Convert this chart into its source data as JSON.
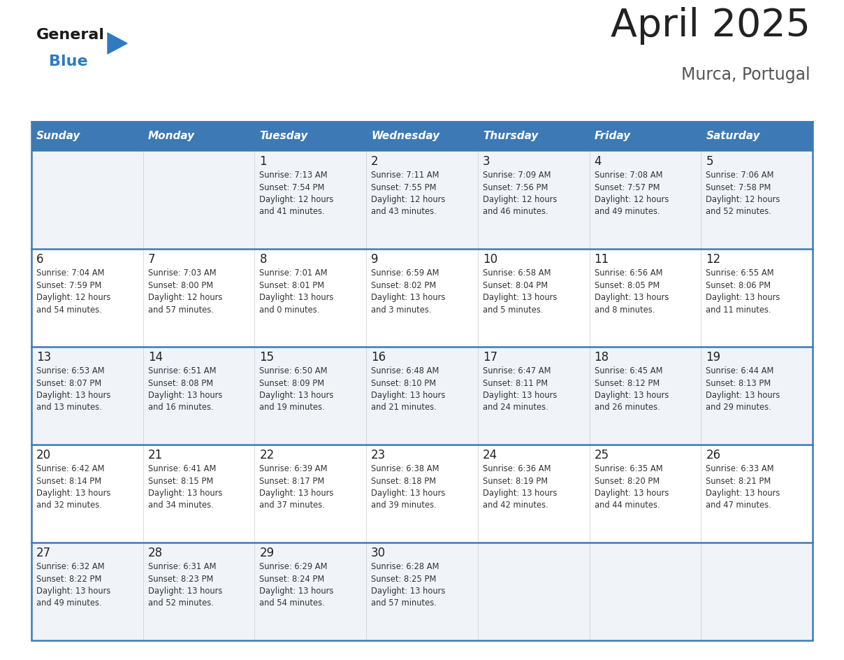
{
  "title": "April 2025",
  "subtitle": "Murca, Portugal",
  "days_of_week": [
    "Sunday",
    "Monday",
    "Tuesday",
    "Wednesday",
    "Thursday",
    "Friday",
    "Saturday"
  ],
  "header_bg": "#3d7ab5",
  "header_text": "#ffffff",
  "cell_border": "#3d7ab5",
  "row_border": "#4a90c4",
  "day_num_color": "#222222",
  "info_color": "#333333",
  "title_color": "#222222",
  "subtitle_color": "#555555",
  "logo_general_color": "#1a1a1a",
  "logo_blue_color": "#2e7bbf",
  "cell_bg_light": "#f0f4f8",
  "cell_bg_white": "#ffffff",
  "weeks": [
    [
      {
        "day": null,
        "info": null
      },
      {
        "day": null,
        "info": null
      },
      {
        "day": 1,
        "info": "Sunrise: 7:13 AM\nSunset: 7:54 PM\nDaylight: 12 hours\nand 41 minutes."
      },
      {
        "day": 2,
        "info": "Sunrise: 7:11 AM\nSunset: 7:55 PM\nDaylight: 12 hours\nand 43 minutes."
      },
      {
        "day": 3,
        "info": "Sunrise: 7:09 AM\nSunset: 7:56 PM\nDaylight: 12 hours\nand 46 minutes."
      },
      {
        "day": 4,
        "info": "Sunrise: 7:08 AM\nSunset: 7:57 PM\nDaylight: 12 hours\nand 49 minutes."
      },
      {
        "day": 5,
        "info": "Sunrise: 7:06 AM\nSunset: 7:58 PM\nDaylight: 12 hours\nand 52 minutes."
      }
    ],
    [
      {
        "day": 6,
        "info": "Sunrise: 7:04 AM\nSunset: 7:59 PM\nDaylight: 12 hours\nand 54 minutes."
      },
      {
        "day": 7,
        "info": "Sunrise: 7:03 AM\nSunset: 8:00 PM\nDaylight: 12 hours\nand 57 minutes."
      },
      {
        "day": 8,
        "info": "Sunrise: 7:01 AM\nSunset: 8:01 PM\nDaylight: 13 hours\nand 0 minutes."
      },
      {
        "day": 9,
        "info": "Sunrise: 6:59 AM\nSunset: 8:02 PM\nDaylight: 13 hours\nand 3 minutes."
      },
      {
        "day": 10,
        "info": "Sunrise: 6:58 AM\nSunset: 8:04 PM\nDaylight: 13 hours\nand 5 minutes."
      },
      {
        "day": 11,
        "info": "Sunrise: 6:56 AM\nSunset: 8:05 PM\nDaylight: 13 hours\nand 8 minutes."
      },
      {
        "day": 12,
        "info": "Sunrise: 6:55 AM\nSunset: 8:06 PM\nDaylight: 13 hours\nand 11 minutes."
      }
    ],
    [
      {
        "day": 13,
        "info": "Sunrise: 6:53 AM\nSunset: 8:07 PM\nDaylight: 13 hours\nand 13 minutes."
      },
      {
        "day": 14,
        "info": "Sunrise: 6:51 AM\nSunset: 8:08 PM\nDaylight: 13 hours\nand 16 minutes."
      },
      {
        "day": 15,
        "info": "Sunrise: 6:50 AM\nSunset: 8:09 PM\nDaylight: 13 hours\nand 19 minutes."
      },
      {
        "day": 16,
        "info": "Sunrise: 6:48 AM\nSunset: 8:10 PM\nDaylight: 13 hours\nand 21 minutes."
      },
      {
        "day": 17,
        "info": "Sunrise: 6:47 AM\nSunset: 8:11 PM\nDaylight: 13 hours\nand 24 minutes."
      },
      {
        "day": 18,
        "info": "Sunrise: 6:45 AM\nSunset: 8:12 PM\nDaylight: 13 hours\nand 26 minutes."
      },
      {
        "day": 19,
        "info": "Sunrise: 6:44 AM\nSunset: 8:13 PM\nDaylight: 13 hours\nand 29 minutes."
      }
    ],
    [
      {
        "day": 20,
        "info": "Sunrise: 6:42 AM\nSunset: 8:14 PM\nDaylight: 13 hours\nand 32 minutes."
      },
      {
        "day": 21,
        "info": "Sunrise: 6:41 AM\nSunset: 8:15 PM\nDaylight: 13 hours\nand 34 minutes."
      },
      {
        "day": 22,
        "info": "Sunrise: 6:39 AM\nSunset: 8:17 PM\nDaylight: 13 hours\nand 37 minutes."
      },
      {
        "day": 23,
        "info": "Sunrise: 6:38 AM\nSunset: 8:18 PM\nDaylight: 13 hours\nand 39 minutes."
      },
      {
        "day": 24,
        "info": "Sunrise: 6:36 AM\nSunset: 8:19 PM\nDaylight: 13 hours\nand 42 minutes."
      },
      {
        "day": 25,
        "info": "Sunrise: 6:35 AM\nSunset: 8:20 PM\nDaylight: 13 hours\nand 44 minutes."
      },
      {
        "day": 26,
        "info": "Sunrise: 6:33 AM\nSunset: 8:21 PM\nDaylight: 13 hours\nand 47 minutes."
      }
    ],
    [
      {
        "day": 27,
        "info": "Sunrise: 6:32 AM\nSunset: 8:22 PM\nDaylight: 13 hours\nand 49 minutes."
      },
      {
        "day": 28,
        "info": "Sunrise: 6:31 AM\nSunset: 8:23 PM\nDaylight: 13 hours\nand 52 minutes."
      },
      {
        "day": 29,
        "info": "Sunrise: 6:29 AM\nSunset: 8:24 PM\nDaylight: 13 hours\nand 54 minutes."
      },
      {
        "day": 30,
        "info": "Sunrise: 6:28 AM\nSunset: 8:25 PM\nDaylight: 13 hours\nand 57 minutes."
      },
      {
        "day": null,
        "info": null
      },
      {
        "day": null,
        "info": null
      },
      {
        "day": null,
        "info": null
      }
    ]
  ]
}
